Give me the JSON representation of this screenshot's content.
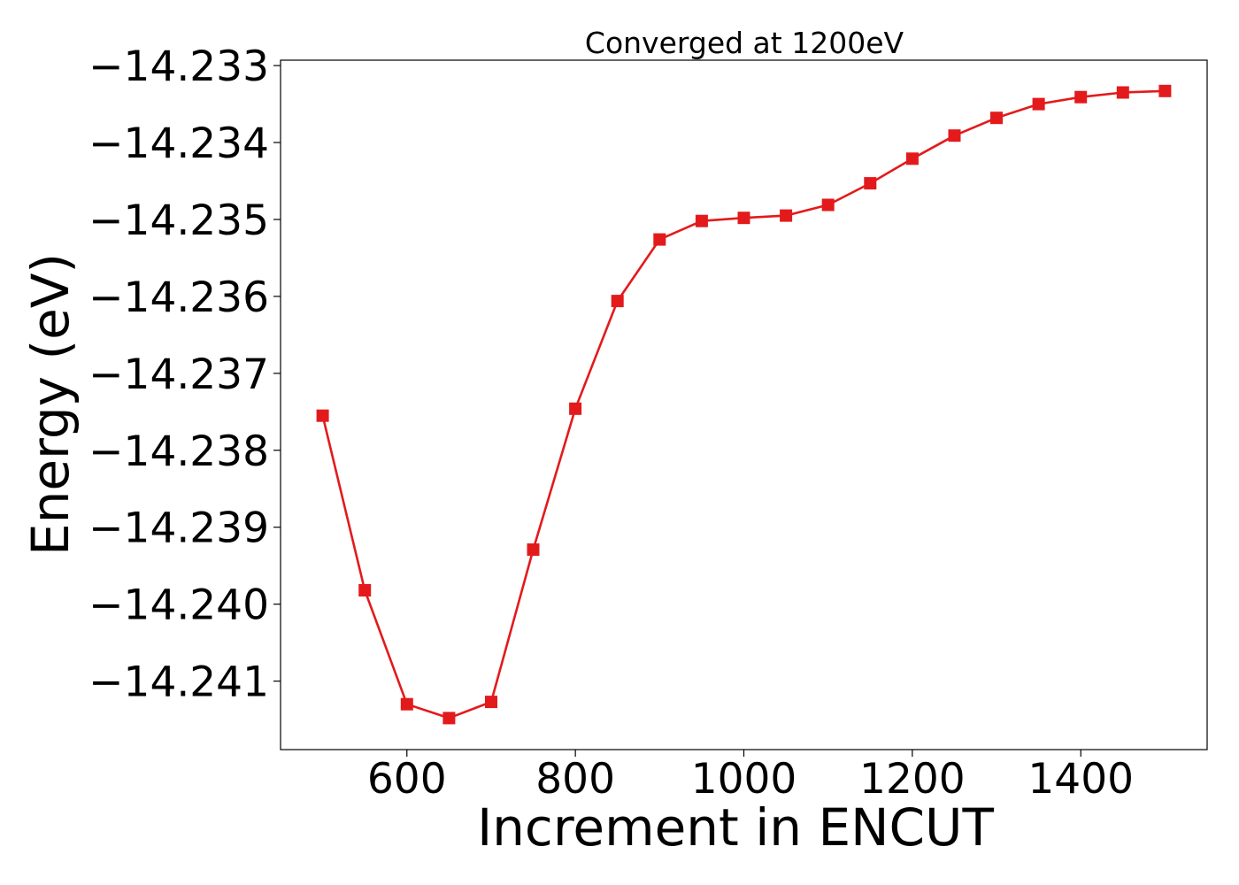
{
  "chart_data": {
    "type": "line",
    "title": "Converged at 1200eV",
    "xlabel": "Increment in ENCUT",
    "ylabel": "Energy (eV)",
    "x": [
      500,
      550,
      600,
      650,
      700,
      750,
      800,
      850,
      900,
      950,
      1000,
      1050,
      1100,
      1150,
      1200,
      1250,
      1300,
      1350,
      1400,
      1450,
      1500
    ],
    "series": [
      {
        "values": [
          -14.23755,
          -14.23982,
          -14.2413,
          -14.24148,
          -14.24127,
          -14.23929,
          -14.23746,
          -14.23606,
          -14.23526,
          -14.23502,
          -14.23498,
          -14.23495,
          -14.23481,
          -14.23453,
          -14.23421,
          -14.23391,
          -14.23368,
          -14.2335,
          -14.23341,
          -14.23335,
          -14.23333
        ],
        "color": "#e31a1c",
        "marker": "square"
      }
    ],
    "xlim": [
      450,
      1550
    ],
    "ylim": [
      -14.24189,
      -14.23293
    ],
    "xticks": [
      600,
      800,
      1000,
      1200,
      1400
    ],
    "xtick_labels": [
      "600",
      "800",
      "1000",
      "1200",
      "1400"
    ],
    "yticks": [
      -14.233,
      -14.234,
      -14.235,
      -14.236,
      -14.237,
      -14.238,
      -14.239,
      -14.24,
      -14.241
    ],
    "ytick_labels": [
      "−14.233",
      "−14.234",
      "−14.235",
      "−14.236",
      "−14.237",
      "−14.238",
      "−14.239",
      "−14.240",
      "−14.241"
    ],
    "grid": false,
    "legend": "none"
  }
}
